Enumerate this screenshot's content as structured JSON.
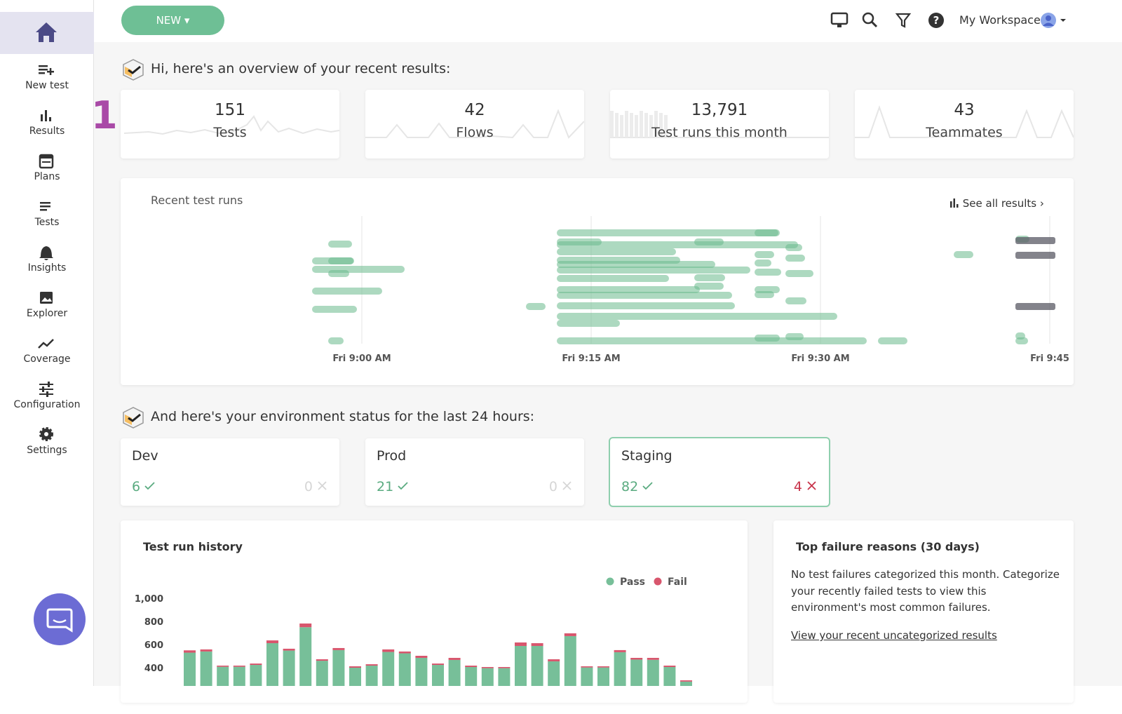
{
  "header": {
    "new_button": "NEW",
    "workspace": "My Workspace"
  },
  "sidebar": {
    "items": [
      "New test",
      "Results",
      "Plans",
      "Tests",
      "Insights",
      "Explorer",
      "Coverage",
      "Configuration",
      "Settings"
    ]
  },
  "annotation": "1",
  "overview": {
    "heading": "Hi, here's an overview of your recent results:",
    "stats": [
      {
        "value": "151",
        "label": "Tests"
      },
      {
        "value": "42",
        "label": "Flows"
      },
      {
        "value": "13,791",
        "label": "Test runs this month"
      },
      {
        "value": "43",
        "label": "Teammates"
      }
    ]
  },
  "recent_runs": {
    "title": "Recent test runs",
    "link": "See all results",
    "x_labels": [
      "Fri 9:00 AM",
      "Fri 9:15 AM",
      "Fri 9:30 AM",
      "Fri 9:45"
    ]
  },
  "environment": {
    "heading": "And here's your environment status for the last 24 hours:",
    "envs": [
      {
        "name": "Dev",
        "pass": "6",
        "fail": "0"
      },
      {
        "name": "Prod",
        "pass": "21",
        "fail": "0"
      },
      {
        "name": "Staging",
        "pass": "82",
        "fail": "4"
      }
    ]
  },
  "history": {
    "type": "bar",
    "title": "Test run history",
    "ylim": [
      0,
      1000
    ],
    "yticks": [
      400,
      600,
      800,
      {
        "value": 1000,
        "label": "1,000"
      }
    ],
    "stacked": true,
    "series": [
      {
        "name": "Pass",
        "color": "#77bf99",
        "values": [
          530,
          540,
          408,
          408,
          424,
          612,
          548,
          750,
          460,
          552,
          400,
          418,
          536,
          524,
          485,
          424,
          467,
          406,
          396,
          396,
          588,
          588,
          455,
          673,
          402,
          402,
          534,
          470,
          468,
          406,
          280
        ]
      },
      {
        "name": "Fail",
        "color": "#d8566d",
        "values": [
          20,
          18,
          10,
          10,
          12,
          24,
          16,
          32,
          13,
          18,
          12,
          12,
          22,
          16,
          18,
          12,
          18,
          12,
          10,
          10,
          30,
          24,
          18,
          24,
          10,
          10,
          18,
          15,
          17,
          12,
          11
        ]
      }
    ]
  },
  "failures": {
    "title": "Top failure reasons (30 days)",
    "text": "No test failures categorized this month. Categorize your recently failed tests to view this environment's most common failures.",
    "link": "View your recent uncategorized results"
  }
}
